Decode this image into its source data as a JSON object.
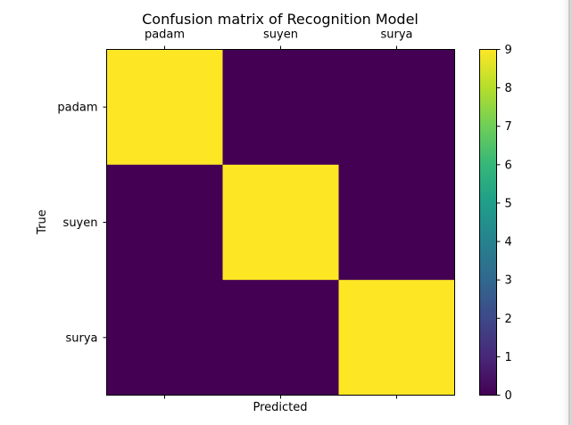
{
  "chart_data": {
    "type": "heatmap",
    "title": "Confusion matrix of Recognition Model",
    "xlabel": "Predicted",
    "ylabel": "True",
    "x_categories": [
      "padam",
      "suyen",
      "surya"
    ],
    "y_categories": [
      "padam",
      "suyen",
      "surya"
    ],
    "matrix": [
      [
        9,
        0,
        0
      ],
      [
        0,
        9,
        0
      ],
      [
        0,
        0,
        9
      ]
    ],
    "colorbar": {
      "min": 0,
      "max": 9,
      "ticks": [
        "0",
        "1",
        "2",
        "3",
        "4",
        "5",
        "6",
        "7",
        "8",
        "9"
      ],
      "colormap": "viridis"
    },
    "x_tick_labels_position": "top",
    "grid": false
  },
  "colors": {
    "viridis_stops": [
      "#440154",
      "#482878",
      "#3e4989",
      "#31688e",
      "#26828e",
      "#1f9e89",
      "#35b779",
      "#6ece58",
      "#b5de2b",
      "#fde725"
    ]
  }
}
